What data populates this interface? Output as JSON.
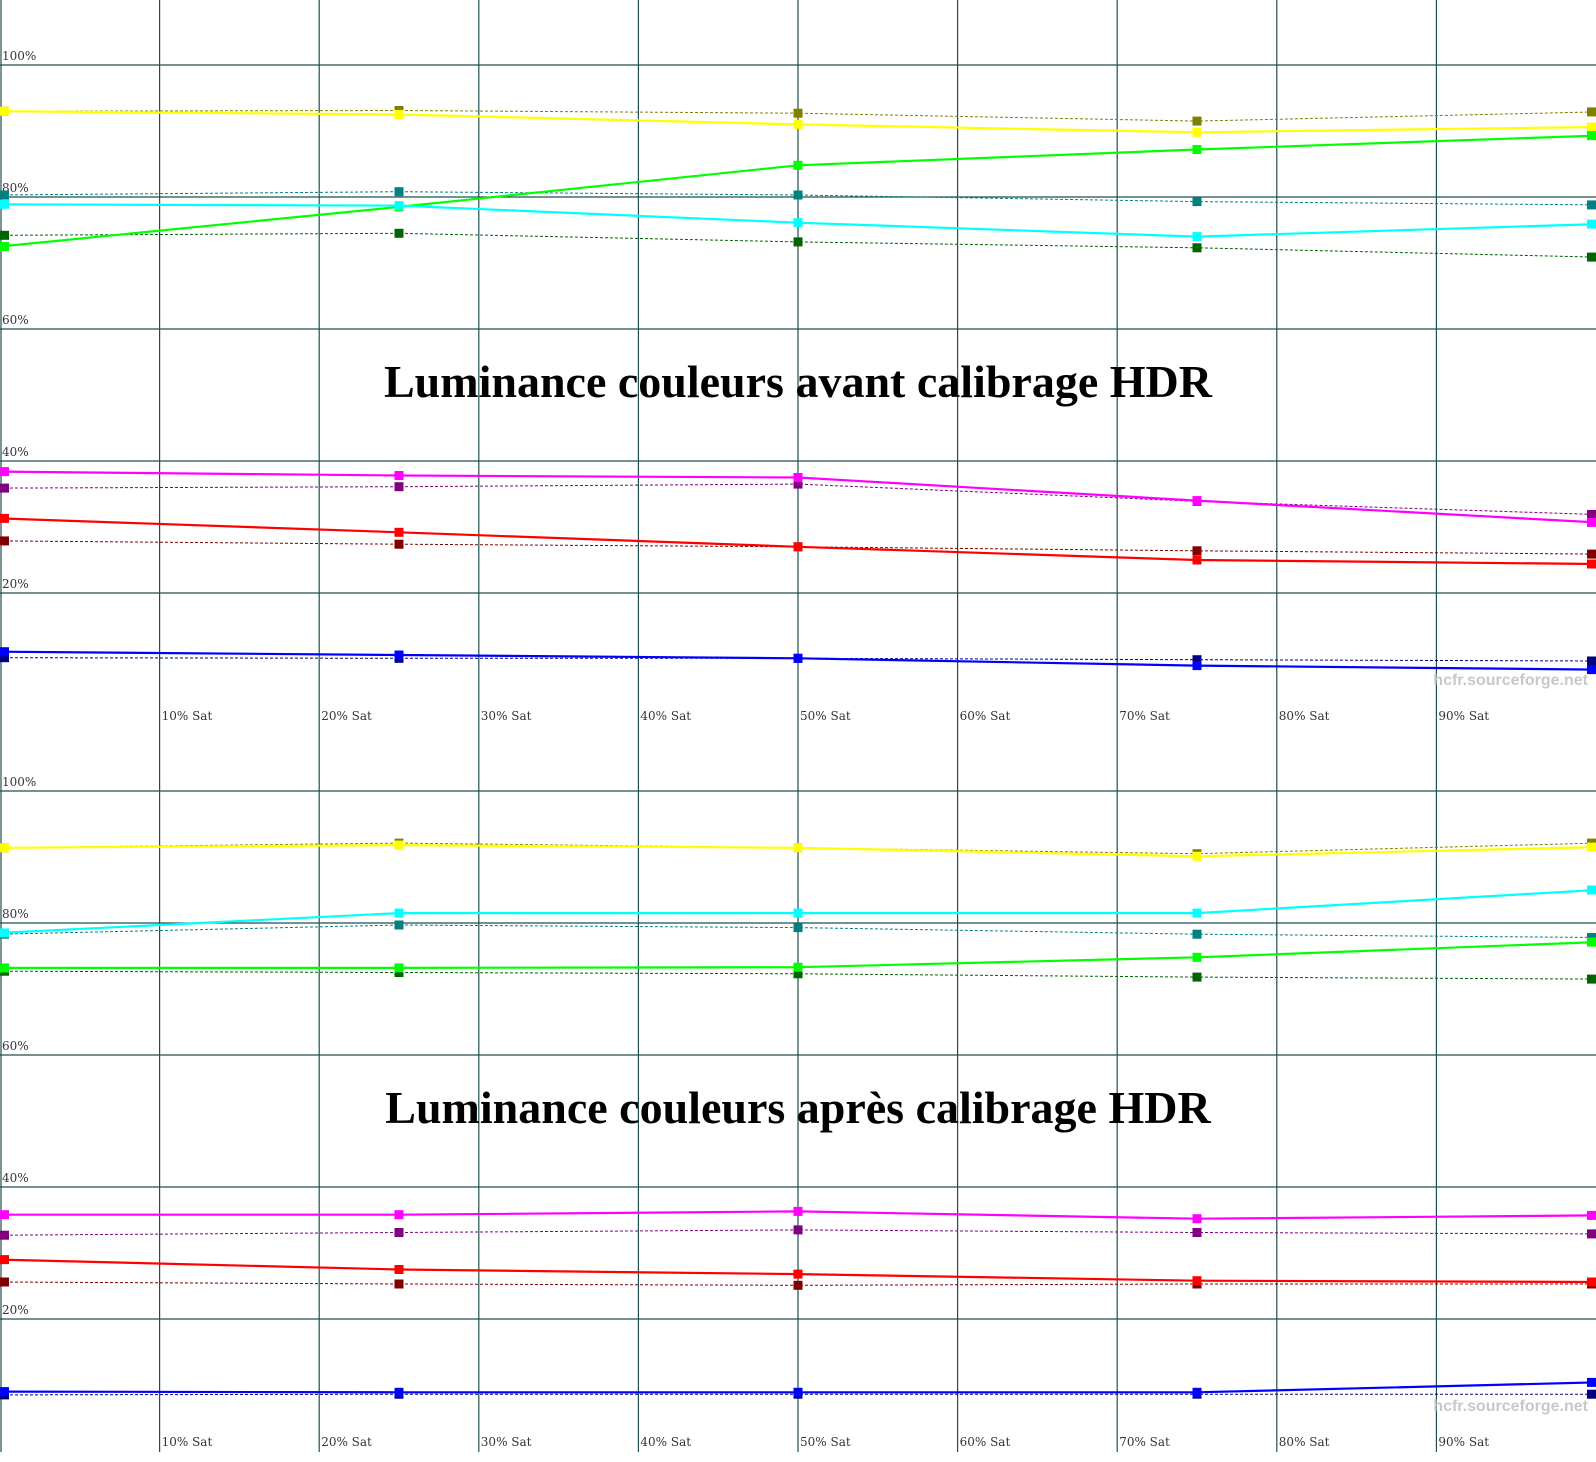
{
  "chart_data": [
    {
      "type": "line",
      "title": "Luminance couleurs avant calibrage HDR",
      "watermark": "hcfr.sourceforge.net",
      "xlabel": "",
      "ylabel": "",
      "x": [
        0,
        25,
        50,
        75,
        100
      ],
      "xlim": [
        0,
        100
      ],
      "ylim": [
        0,
        110
      ],
      "x_tick_labels": [
        "10% Sat",
        "20% Sat",
        "30% Sat",
        "40% Sat",
        "50% Sat",
        "60% Sat",
        "70% Sat",
        "80% Sat",
        "90% Sat"
      ],
      "y_tick_labels": [
        "20%",
        "40%",
        "60%",
        "80%",
        "100%"
      ],
      "grid": true,
      "legend": "none",
      "series": [
        {
          "color": "#ffff00",
          "style": "solid",
          "values": [
            93.0,
            92.5,
            91.0,
            89.8,
            90.6
          ]
        },
        {
          "color": "#808000",
          "style": "dashed",
          "values": [
            93.0,
            93.1,
            92.7,
            91.5,
            92.9
          ]
        },
        {
          "color": "#00ff00",
          "style": "solid",
          "values": [
            72.5,
            78.5,
            84.8,
            87.2,
            89.3
          ]
        },
        {
          "color": "#006400",
          "style": "dashed",
          "values": [
            74.2,
            74.5,
            73.2,
            72.3,
            70.9
          ]
        },
        {
          "color": "#00ffff",
          "style": "solid",
          "values": [
            78.9,
            78.7,
            76.1,
            74.0,
            75.9
          ]
        },
        {
          "color": "#008080",
          "style": "dashed",
          "values": [
            80.3,
            80.8,
            80.3,
            79.3,
            78.8
          ]
        },
        {
          "color": "#ff00ff",
          "style": "solid",
          "values": [
            38.4,
            37.8,
            37.5,
            34.0,
            30.7
          ]
        },
        {
          "color": "#800080",
          "style": "dashed",
          "values": [
            35.9,
            36.1,
            36.5,
            33.9,
            31.9
          ]
        },
        {
          "color": "#ff0000",
          "style": "solid",
          "values": [
            31.3,
            29.2,
            27.0,
            25.0,
            24.4
          ]
        },
        {
          "color": "#800000",
          "style": "dashed",
          "values": [
            27.9,
            27.4,
            27.0,
            26.4,
            25.9
          ]
        },
        {
          "color": "#0000ff",
          "style": "solid",
          "values": [
            11.1,
            10.6,
            10.1,
            9.0,
            8.4
          ]
        },
        {
          "color": "#000080",
          "style": "dashed",
          "values": [
            10.2,
            10.1,
            10.1,
            9.9,
            9.7
          ]
        }
      ]
    },
    {
      "type": "line",
      "title": "Luminance couleurs après calibrage HDR",
      "watermark": "hcfr.sourceforge.net",
      "xlabel": "",
      "ylabel": "",
      "x": [
        0,
        25,
        50,
        75,
        100
      ],
      "xlim": [
        0,
        100
      ],
      "ylim": [
        0,
        110
      ],
      "x_tick_labels": [
        "10% Sat",
        "20% Sat",
        "30% Sat",
        "40% Sat",
        "50% Sat",
        "60% Sat",
        "70% Sat",
        "80% Sat",
        "90% Sat"
      ],
      "y_tick_labels": [
        "20%",
        "40%",
        "60%",
        "80%",
        "100%"
      ],
      "grid": true,
      "legend": "none",
      "series": [
        {
          "color": "#ffff00",
          "style": "solid",
          "values": [
            91.4,
            91.8,
            91.4,
            90.1,
            91.5
          ]
        },
        {
          "color": "#808000",
          "style": "dashed",
          "values": [
            91.4,
            92.1,
            91.4,
            90.5,
            92.1
          ]
        },
        {
          "color": "#00ff00",
          "style": "solid",
          "values": [
            73.2,
            73.2,
            73.3,
            74.8,
            77.1
          ]
        },
        {
          "color": "#006400",
          "style": "dashed",
          "values": [
            72.7,
            72.5,
            72.3,
            71.8,
            71.5
          ]
        },
        {
          "color": "#00ffff",
          "style": "solid",
          "values": [
            78.5,
            81.5,
            81.5,
            81.5,
            85.0
          ]
        },
        {
          "color": "#008080",
          "style": "dashed",
          "values": [
            78.3,
            79.7,
            79.3,
            78.3,
            77.8
          ]
        },
        {
          "color": "#ff00ff",
          "style": "solid",
          "values": [
            35.8,
            35.8,
            36.3,
            35.2,
            35.7
          ]
        },
        {
          "color": "#800080",
          "style": "dashed",
          "values": [
            32.7,
            33.1,
            33.5,
            33.1,
            32.9
          ]
        },
        {
          "color": "#ff0000",
          "style": "solid",
          "values": [
            29.0,
            27.5,
            26.8,
            25.8,
            25.6
          ]
        },
        {
          "color": "#800000",
          "style": "dashed",
          "values": [
            25.6,
            25.3,
            25.1,
            25.3,
            25.3
          ]
        },
        {
          "color": "#0000ff",
          "style": "solid",
          "values": [
            9.0,
            8.9,
            8.9,
            8.9,
            10.4
          ]
        },
        {
          "color": "#000080",
          "style": "dashed",
          "values": [
            8.5,
            8.6,
            8.6,
            8.6,
            8.6
          ]
        }
      ]
    }
  ]
}
